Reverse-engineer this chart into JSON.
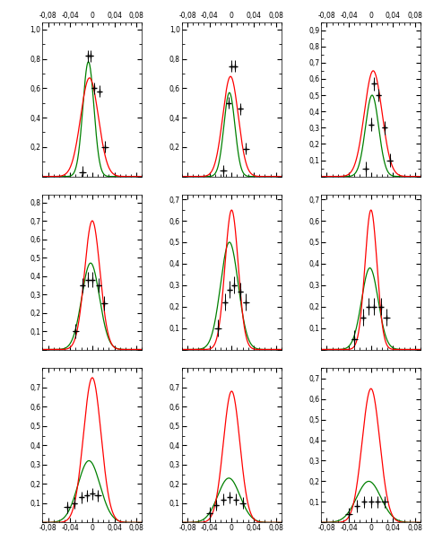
{
  "xlim": [
    -0.09,
    0.09
  ],
  "xticks": [
    -0.08,
    -0.04,
    0,
    0.04,
    0.08
  ],
  "background": "#ffffff",
  "subplots": [
    {
      "row": 0,
      "col": 0,
      "ylim": [
        0,
        1.05
      ],
      "yticks": [
        0,
        0.2,
        0.4,
        0.6,
        0.8,
        1.0
      ],
      "red_mu": -0.005,
      "red_sigma": 0.016,
      "red_amp": 0.67,
      "green_mu": -0.007,
      "green_sigma": 0.01,
      "green_amp": 0.78,
      "data_x": [
        -0.018,
        -0.008,
        -0.003,
        0.003,
        0.013,
        0.023
      ],
      "data_y": [
        0.03,
        0.82,
        0.82,
        0.6,
        0.58,
        0.2
      ],
      "data_xe": [
        0.006,
        0.004,
        0.004,
        0.004,
        0.004,
        0.006
      ],
      "data_ye": [
        0.04,
        0.04,
        0.04,
        0.04,
        0.04,
        0.04
      ]
    },
    {
      "row": 0,
      "col": 1,
      "ylim": [
        0,
        1.05
      ],
      "yticks": [
        0,
        0.2,
        0.4,
        0.6,
        0.8,
        1.0
      ],
      "red_mu": -0.002,
      "red_sigma": 0.014,
      "red_amp": 0.68,
      "green_mu": -0.004,
      "green_sigma": 0.01,
      "green_amp": 0.57,
      "data_x": [
        -0.015,
        -0.006,
        0.0,
        0.006,
        0.016,
        0.026
      ],
      "data_y": [
        0.04,
        0.5,
        0.75,
        0.75,
        0.46,
        0.19
      ],
      "data_xe": [
        0.006,
        0.004,
        0.004,
        0.004,
        0.004,
        0.006
      ],
      "data_ye": [
        0.04,
        0.04,
        0.04,
        0.04,
        0.04,
        0.04
      ]
    },
    {
      "row": 0,
      "col": 2,
      "ylim": [
        0,
        0.95
      ],
      "yticks": [
        0,
        0.1,
        0.2,
        0.3,
        0.4,
        0.5,
        0.6,
        0.7,
        0.8,
        0.9
      ],
      "red_mu": 0.004,
      "red_sigma": 0.016,
      "red_amp": 0.65,
      "green_mu": 0.002,
      "green_sigma": 0.012,
      "green_amp": 0.5,
      "data_x": [
        -0.01,
        0.0,
        0.006,
        0.014,
        0.024,
        0.034
      ],
      "data_y": [
        0.05,
        0.32,
        0.57,
        0.5,
        0.3,
        0.1
      ],
      "data_xe": [
        0.006,
        0.004,
        0.004,
        0.004,
        0.004,
        0.006
      ],
      "data_ye": [
        0.04,
        0.04,
        0.04,
        0.04,
        0.04,
        0.04
      ]
    },
    {
      "row": 1,
      "col": 0,
      "ylim": [
        0,
        0.84
      ],
      "yticks": [
        0,
        0.1,
        0.2,
        0.3,
        0.4,
        0.5,
        0.6,
        0.7,
        0.8
      ],
      "red_mu": 0.0,
      "red_sigma": 0.014,
      "red_amp": 0.7,
      "green_mu": -0.003,
      "green_sigma": 0.016,
      "green_amp": 0.47,
      "data_x": [
        -0.03,
        -0.018,
        -0.008,
        0.0,
        0.012,
        0.022
      ],
      "data_y": [
        0.1,
        0.35,
        0.38,
        0.38,
        0.35,
        0.25
      ],
      "data_xe": [
        0.006,
        0.004,
        0.004,
        0.004,
        0.004,
        0.006
      ],
      "data_ye": [
        0.04,
        0.04,
        0.04,
        0.04,
        0.04,
        0.04
      ]
    },
    {
      "row": 1,
      "col": 1,
      "ylim": [
        0,
        0.72
      ],
      "yticks": [
        0,
        0.1,
        0.2,
        0.3,
        0.4,
        0.5,
        0.6,
        0.7
      ],
      "red_mu": 0.0,
      "red_sigma": 0.012,
      "red_amp": 0.65,
      "green_mu": -0.004,
      "green_sigma": 0.016,
      "green_amp": 0.5,
      "data_x": [
        -0.025,
        -0.012,
        -0.003,
        0.005,
        0.016,
        0.026
      ],
      "data_y": [
        0.1,
        0.22,
        0.28,
        0.3,
        0.27,
        0.22
      ],
      "data_xe": [
        0.006,
        0.004,
        0.004,
        0.004,
        0.004,
        0.006
      ],
      "data_ye": [
        0.04,
        0.04,
        0.04,
        0.04,
        0.04,
        0.04
      ]
    },
    {
      "row": 1,
      "col": 2,
      "ylim": [
        0,
        0.72
      ],
      "yticks": [
        0,
        0.1,
        0.2,
        0.3,
        0.4,
        0.5,
        0.6,
        0.7
      ],
      "red_mu": 0.0,
      "red_sigma": 0.011,
      "red_amp": 0.65,
      "green_mu": -0.002,
      "green_sigma": 0.015,
      "green_amp": 0.38,
      "data_x": [
        -0.03,
        -0.015,
        -0.004,
        0.006,
        0.018,
        0.028
      ],
      "data_y": [
        0.05,
        0.15,
        0.2,
        0.2,
        0.2,
        0.15
      ],
      "data_xe": [
        0.006,
        0.004,
        0.004,
        0.004,
        0.004,
        0.006
      ],
      "data_ye": [
        0.04,
        0.04,
        0.04,
        0.04,
        0.04,
        0.04
      ]
    },
    {
      "row": 2,
      "col": 0,
      "ylim": [
        0,
        0.8
      ],
      "yticks": [
        0,
        0.1,
        0.2,
        0.3,
        0.4,
        0.5,
        0.6,
        0.7
      ],
      "red_mu": 0.0,
      "red_sigma": 0.016,
      "red_amp": 0.75,
      "green_mu": -0.006,
      "green_sigma": 0.02,
      "green_amp": 0.32,
      "data_x": [
        -0.045,
        -0.032,
        -0.02,
        -0.01,
        0.0,
        0.01
      ],
      "data_y": [
        0.08,
        0.1,
        0.13,
        0.14,
        0.15,
        0.14
      ],
      "data_xe": [
        0.006,
        0.004,
        0.004,
        0.004,
        0.004,
        0.006
      ],
      "data_ye": [
        0.03,
        0.03,
        0.03,
        0.03,
        0.03,
        0.03
      ]
    },
    {
      "row": 2,
      "col": 1,
      "ylim": [
        0,
        0.8
      ],
      "yticks": [
        0,
        0.1,
        0.2,
        0.3,
        0.4,
        0.5,
        0.6,
        0.7
      ],
      "red_mu": 0.0,
      "red_sigma": 0.015,
      "red_amp": 0.68,
      "green_mu": -0.005,
      "green_sigma": 0.02,
      "green_amp": 0.23,
      "data_x": [
        -0.04,
        -0.028,
        -0.015,
        -0.003,
        0.008,
        0.02
      ],
      "data_y": [
        0.05,
        0.09,
        0.12,
        0.13,
        0.12,
        0.1
      ],
      "data_xe": [
        0.006,
        0.004,
        0.004,
        0.004,
        0.004,
        0.006
      ],
      "data_ye": [
        0.03,
        0.03,
        0.03,
        0.03,
        0.03,
        0.03
      ]
    },
    {
      "row": 2,
      "col": 2,
      "ylim": [
        0,
        0.75
      ],
      "yticks": [
        0,
        0.1,
        0.2,
        0.3,
        0.4,
        0.5,
        0.6,
        0.7
      ],
      "red_mu": 0.0,
      "red_sigma": 0.016,
      "red_amp": 0.65,
      "green_mu": -0.004,
      "green_sigma": 0.022,
      "green_amp": 0.2,
      "data_x": [
        -0.04,
        -0.025,
        -0.012,
        0.0,
        0.012,
        0.025
      ],
      "data_y": [
        0.04,
        0.08,
        0.1,
        0.1,
        0.1,
        0.1
      ],
      "data_xe": [
        0.006,
        0.004,
        0.004,
        0.004,
        0.004,
        0.006
      ],
      "data_ye": [
        0.03,
        0.03,
        0.03,
        0.03,
        0.03,
        0.03
      ]
    }
  ]
}
